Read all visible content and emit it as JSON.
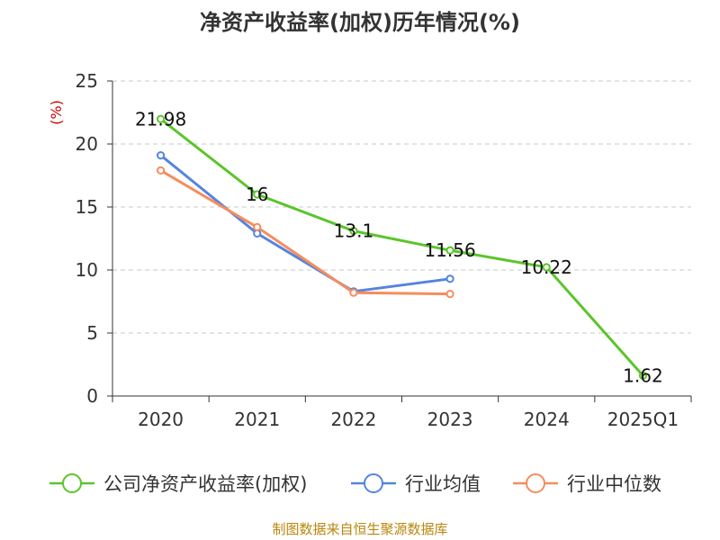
{
  "chart_data": {
    "type": "line",
    "title": "净资产收益率(加权)历年情况(%)",
    "ylabel": "(%)",
    "categories": [
      "2020",
      "2021",
      "2022",
      "2023",
      "2024",
      "2025Q1"
    ],
    "yticks": [
      "0",
      "5",
      "10",
      "15",
      "20",
      "25"
    ],
    "ylim": [
      0,
      25
    ],
    "grid": true,
    "legend_position": "bottom",
    "series": [
      {
        "name": "公司净资产收益率(加权)",
        "color": "#5cc42b",
        "values": [
          21.98,
          16,
          13.1,
          11.56,
          10.22,
          1.62
        ],
        "labels": [
          "21.98",
          "16",
          "13.1",
          "11.56",
          "10.22",
          "1.62"
        ]
      },
      {
        "name": "行业均值",
        "color": "#5584e0",
        "values": [
          19.1,
          12.9,
          8.3,
          9.3,
          null,
          null
        ]
      },
      {
        "name": "行业中位数",
        "color": "#f58d5e",
        "values": [
          17.9,
          13.4,
          8.2,
          8.1,
          null,
          null
        ]
      }
    ]
  },
  "source": "制图数据来自恒生聚源数据库"
}
